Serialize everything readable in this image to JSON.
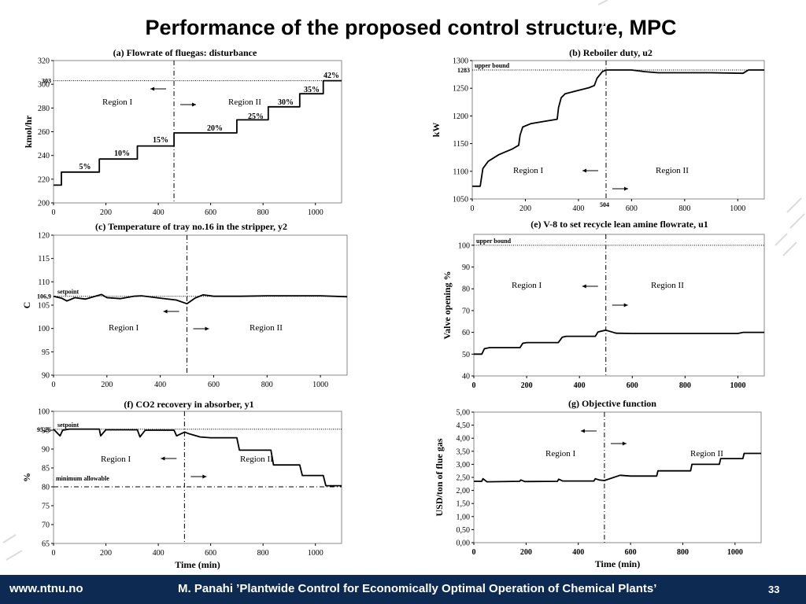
{
  "slide": {
    "title": "Performance of the proposed control structure, MPC",
    "footer_url": "www.ntnu.no",
    "footer_citation": "M. Panahi ’Plantwide Control for Economically Optimal Operation of Chemical Plants’",
    "page_number": "33",
    "footer_color": "#0d2a52"
  },
  "chart_data": [
    {
      "id": "a",
      "type": "line",
      "title": "(a) Flowrate of fluegas: disturbance",
      "ylabel": "kmol/hr",
      "xlabel": "",
      "xlim": [
        0,
        1100
      ],
      "ylim": [
        200,
        320
      ],
      "xticks": [
        "0",
        "200",
        "400",
        "600",
        "800",
        "1000"
      ],
      "yticks": [
        "200",
        "220",
        "240",
        "260",
        "280",
        "300",
        "320"
      ],
      "reference_line": {
        "value": 303,
        "label": "303"
      },
      "vertical_line": 460,
      "regions": [
        "Region I",
        "Region II"
      ],
      "series": [
        {
          "x": [
            0,
            30,
            30,
            175,
            175,
            320,
            320,
            460,
            460,
            700,
            700,
            820,
            820,
            940,
            940,
            1030,
            1030,
            1100
          ],
          "y": [
            215,
            215,
            226,
            226,
            237,
            237,
            248,
            248,
            259,
            259,
            270,
            270,
            281,
            281,
            292,
            292,
            303,
            303
          ]
        }
      ],
      "annotations": [
        "5%",
        "10%",
        "15%",
        "20%",
        "25%",
        "30%",
        "35%",
        "42%"
      ]
    },
    {
      "id": "b",
      "type": "line",
      "title": "(b) Reboiler duty, u2",
      "ylabel": "kW",
      "xlabel": "",
      "xlim": [
        0,
        1100
      ],
      "ylim": [
        1050,
        1300
      ],
      "xticks": [
        "0",
        "200",
        "400",
        "600",
        "800",
        "1000"
      ],
      "yticks": [
        "1050",
        "1100",
        "1150",
        "1200",
        "1250",
        "1300"
      ],
      "reference_line": {
        "value": 1283,
        "label": "1283",
        "name": "upper bound"
      },
      "vertical_line": 504,
      "vertical_line_label": "504",
      "regions": [
        "Region I",
        "Region II"
      ],
      "series": [
        {
          "x": [
            0,
            30,
            40,
            60,
            100,
            150,
            175,
            180,
            190,
            220,
            270,
            320,
            325,
            335,
            350,
            390,
            440,
            460,
            470,
            490,
            504,
            600,
            650,
            700,
            800,
            900,
            1020,
            1040,
            1100
          ],
          "y": [
            1073,
            1073,
            1105,
            1118,
            1130,
            1140,
            1147,
            1165,
            1180,
            1186,
            1190,
            1194,
            1215,
            1233,
            1240,
            1245,
            1251,
            1255,
            1268,
            1280,
            1283,
            1283,
            1280,
            1278,
            1278,
            1278,
            1277,
            1283,
            1283
          ]
        }
      ]
    },
    {
      "id": "c",
      "type": "line",
      "title": "(c) Temperature of tray no.16 in the stripper, y2",
      "ylabel": "C",
      "xlabel": "",
      "xlim": [
        0,
        1100
      ],
      "ylim": [
        90,
        120
      ],
      "xticks": [
        "0",
        "200",
        "400",
        "600",
        "800",
        "1000"
      ],
      "yticks": [
        "90",
        "95",
        "100",
        "105",
        "110",
        "115",
        "120"
      ],
      "reference_line": {
        "value": 106.9,
        "label": "106,9",
        "name": "setpoint"
      },
      "vertical_line": 500,
      "regions": [
        "Region I",
        "Region II"
      ],
      "series": [
        {
          "x": [
            0,
            30,
            50,
            80,
            120,
            180,
            200,
            250,
            300,
            330,
            400,
            460,
            500,
            530,
            560,
            600,
            700,
            800,
            1000,
            1100
          ],
          "y": [
            106.9,
            106.5,
            105.9,
            106.6,
            106.3,
            107.3,
            106.6,
            106.4,
            106.9,
            107.0,
            106.5,
            106.1,
            105.3,
            106.5,
            107.2,
            106.9,
            106.9,
            107.0,
            107.0,
            106.8
          ]
        }
      ]
    },
    {
      "id": "e",
      "type": "line",
      "title": "(e) V-8 to set recycle lean amine flowrate, u1",
      "ylabel": "Valve opening %",
      "xlabel": "",
      "xlim": [
        0,
        1100
      ],
      "ylim": [
        40,
        105
      ],
      "xticks": [
        "0",
        "200",
        "400",
        "600",
        "800",
        "1000"
      ],
      "yticks": [
        "40",
        "50",
        "60",
        "70",
        "80",
        "90",
        "100"
      ],
      "reference_line": {
        "value": 100,
        "name": "upper bound"
      },
      "vertical_line": 500,
      "regions": [
        "Region I",
        "Region II"
      ],
      "series": [
        {
          "x": [
            0,
            30,
            40,
            60,
            175,
            185,
            200,
            320,
            335,
            350,
            460,
            470,
            500,
            520,
            540,
            600,
            800,
            1000,
            1020,
            1100
          ],
          "y": [
            50,
            50,
            52.5,
            53,
            53,
            55,
            55.3,
            55.3,
            57.8,
            58.2,
            58.2,
            60.2,
            61,
            60.3,
            59.6,
            59.5,
            59.5,
            59.5,
            60,
            60
          ]
        }
      ]
    },
    {
      "id": "f",
      "type": "line",
      "title": "(f) CO2 recovery in absorber, y1",
      "ylabel": "%",
      "xlabel": "Time (min)",
      "xlim": [
        0,
        1100
      ],
      "ylim": [
        65,
        100
      ],
      "xticks": [
        "0",
        "200",
        "400",
        "600",
        "800",
        "1000"
      ],
      "yticks": [
        "65",
        "70",
        "75",
        "80",
        "85",
        "90",
        "95",
        "100"
      ],
      "reference_lines": [
        {
          "value": 95.26,
          "label": "95,26",
          "name": "setpoint"
        },
        {
          "value": 80,
          "name": "minimum allowable"
        }
      ],
      "vertical_line": 500,
      "regions": [
        "Region I",
        "Region II"
      ],
      "series": [
        {
          "x": [
            0,
            25,
            35,
            60,
            175,
            180,
            200,
            320,
            330,
            350,
            460,
            470,
            500,
            520,
            560,
            600,
            700,
            710,
            830,
            840,
            940,
            950,
            1030,
            1040,
            1100
          ],
          "y": [
            95.3,
            93.5,
            95,
            95.3,
            95.3,
            93.5,
            95.1,
            95.1,
            93.2,
            95.0,
            95.0,
            93.5,
            94.5,
            94,
            93.2,
            93,
            93,
            89.7,
            89.7,
            85.8,
            85.8,
            83,
            83,
            80.3,
            80.3
          ]
        }
      ]
    },
    {
      "id": "g",
      "type": "line",
      "title": "(g) Objective function",
      "ylabel": "USD/ton of flue gas",
      "xlabel": "Time (min)",
      "xlim": [
        0,
        1100
      ],
      "ylim": [
        0,
        5
      ],
      "xticks": [
        "0",
        "200",
        "400",
        "600",
        "800",
        "1000"
      ],
      "yticks": [
        "0,00",
        "0,50",
        "1,00",
        "1,50",
        "2,00",
        "2,50",
        "3,00",
        "3,50",
        "4,00",
        "4,50",
        "5,00"
      ],
      "vertical_line": 500,
      "regions": [
        "Region I",
        "Region II"
      ],
      "series": [
        {
          "x": [
            0,
            30,
            35,
            50,
            175,
            180,
            195,
            320,
            325,
            340,
            460,
            465,
            480,
            500,
            560,
            600,
            700,
            705,
            830,
            835,
            940,
            945,
            1030,
            1035,
            1100
          ],
          "y": [
            2.35,
            2.35,
            2.45,
            2.33,
            2.35,
            2.4,
            2.34,
            2.35,
            2.43,
            2.36,
            2.36,
            2.45,
            2.4,
            2.38,
            2.58,
            2.55,
            2.55,
            2.75,
            2.75,
            3.0,
            3.0,
            3.22,
            3.22,
            3.42,
            3.42
          ]
        }
      ]
    }
  ]
}
